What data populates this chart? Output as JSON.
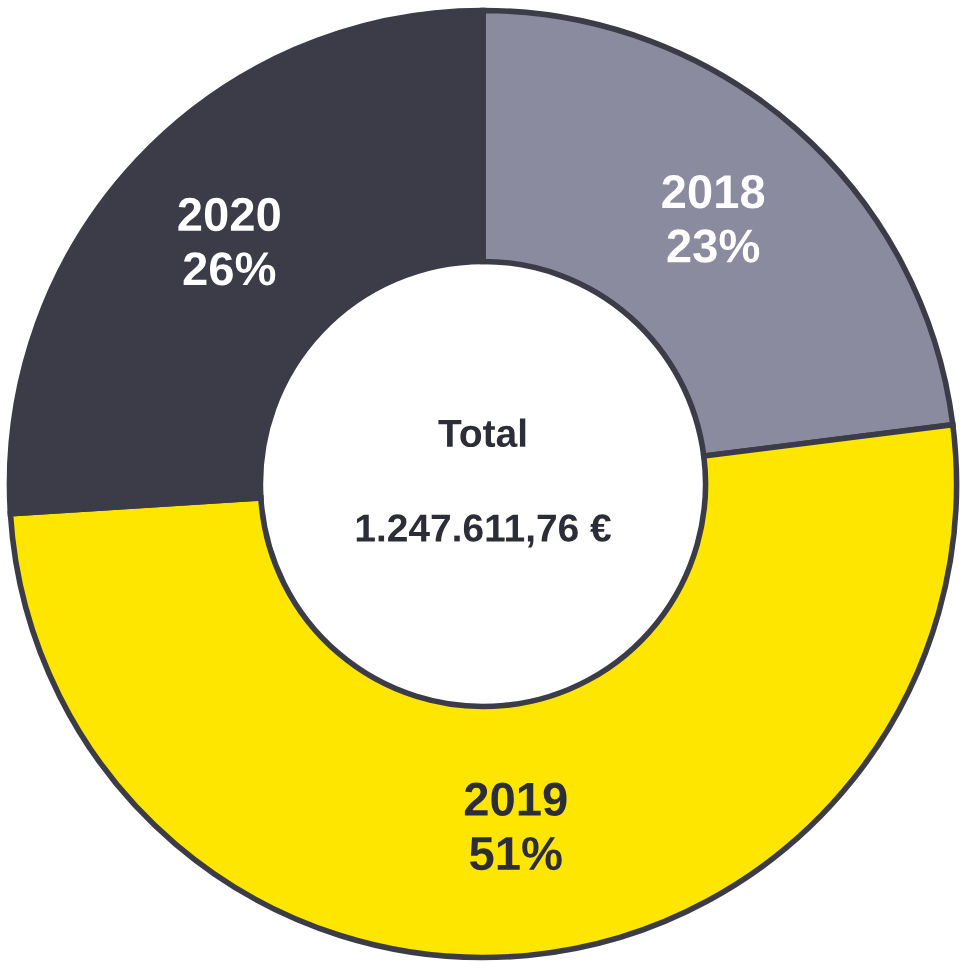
{
  "chart_data": {
    "type": "donut",
    "categories": [
      "2018",
      "2019",
      "2020"
    ],
    "values": [
      23,
      51,
      26
    ],
    "colors": [
      "#8b8ba0",
      "#ffe600",
      "#3c3c48"
    ],
    "value_labels": [
      "23%",
      "51%",
      "26%"
    ],
    "annotations": [
      "Total",
      "1.247.611,76 €"
    ]
  }
}
